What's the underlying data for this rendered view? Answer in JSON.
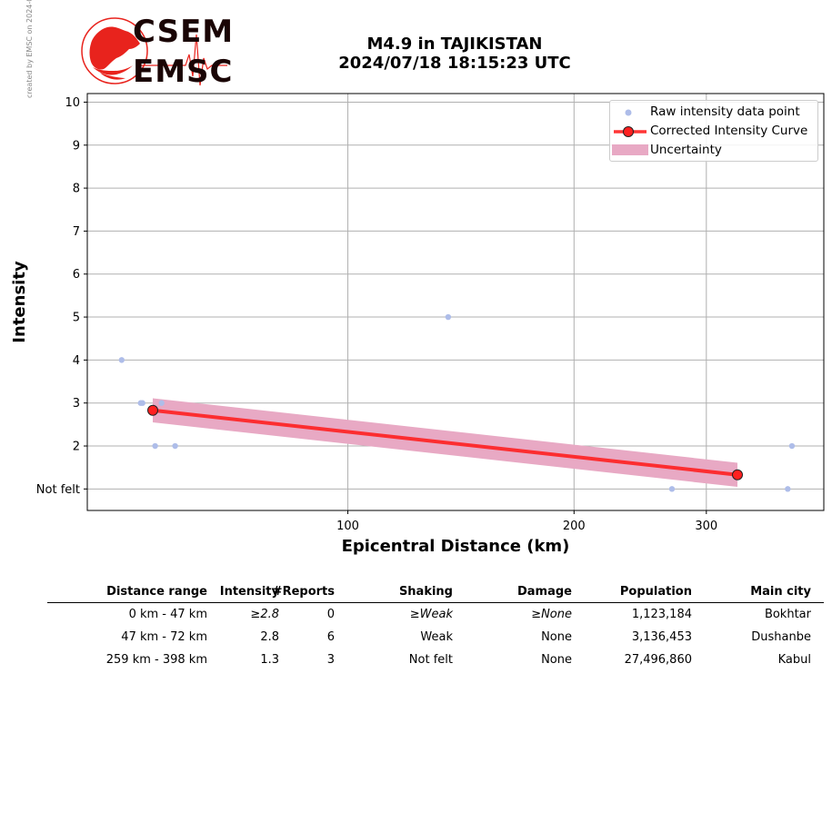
{
  "credit": "created by EMSC on 2024-07-19 06:35:24 UTC",
  "logo": {
    "line1": "CSEM",
    "line2": "EMSC",
    "color": "#e8231d"
  },
  "title": {
    "line1": "M4.9 in TAJIKISTAN",
    "line2": "2024/07/18 18:15:23 UTC"
  },
  "legend": {
    "raw": "Raw intensity data point",
    "curve": "Corrected Intensity Curve",
    "uncertainty": "Uncertainty"
  },
  "colors": {
    "raw": "#aebde9",
    "curve": "#ff2020",
    "band": "#e8a9c4",
    "grid": "#b0b0b0"
  },
  "chart_data": {
    "type": "scatter",
    "xlabel": "Epicentral Distance (km)",
    "ylabel": "Intensity",
    "xscale": "log",
    "xlim": [
      45,
      430
    ],
    "ylim": [
      0.5,
      10.2
    ],
    "xticks": [
      {
        "value": 100,
        "label": "100"
      },
      {
        "value": 200,
        "label": "200"
      },
      {
        "value": 300,
        "label": "300"
      }
    ],
    "yticks": [
      {
        "value": 1,
        "label": "Not felt"
      },
      {
        "value": 2,
        "label": "2"
      },
      {
        "value": 3,
        "label": "3"
      },
      {
        "value": 4,
        "label": "4"
      },
      {
        "value": 5,
        "label": "5"
      },
      {
        "value": 6,
        "label": "6"
      },
      {
        "value": 7,
        "label": "7"
      },
      {
        "value": 8,
        "label": "8"
      },
      {
        "value": 9,
        "label": "9"
      },
      {
        "value": 10,
        "label": "10"
      }
    ],
    "grid": true,
    "legend_position": "top-right",
    "series": [
      {
        "name": "Raw intensity data point",
        "type": "scatter",
        "points": [
          [
            50,
            4
          ],
          [
            53,
            3
          ],
          [
            53.3,
            3
          ],
          [
            55.4,
            2
          ],
          [
            56.5,
            3
          ],
          [
            58.9,
            2
          ],
          [
            136,
            5
          ],
          [
            270,
            1
          ],
          [
            385,
            1
          ],
          [
            390,
            2
          ]
        ]
      },
      {
        "name": "Corrected Intensity Curve",
        "type": "line",
        "points": [
          [
            55,
            2.83
          ],
          [
            330,
            1.33
          ]
        ]
      },
      {
        "name": "Uncertainty",
        "type": "band",
        "lower": [
          [
            55,
            2.55
          ],
          [
            330,
            1.05
          ]
        ],
        "upper": [
          [
            55,
            3.11
          ],
          [
            330,
            1.61
          ]
        ]
      }
    ]
  },
  "table": {
    "headers": [
      "Distance range",
      "Intensity",
      "#Reports",
      "Shaking",
      "Damage",
      "Population",
      "Main city"
    ],
    "rows": [
      [
        "0 km -   47 km",
        "≥2.8",
        "0",
        "≥Weak",
        "≥None",
        "1,123,184",
        "Bokhtar"
      ],
      [
        "47 km -   72 km",
        "2.8",
        "6",
        "Weak",
        "None",
        "3,136,453",
        "Dushanbe"
      ],
      [
        "259 km -  398 km",
        "1.3",
        "3",
        "Not felt",
        "None",
        "27,496,860",
        "Kabul"
      ]
    ]
  }
}
